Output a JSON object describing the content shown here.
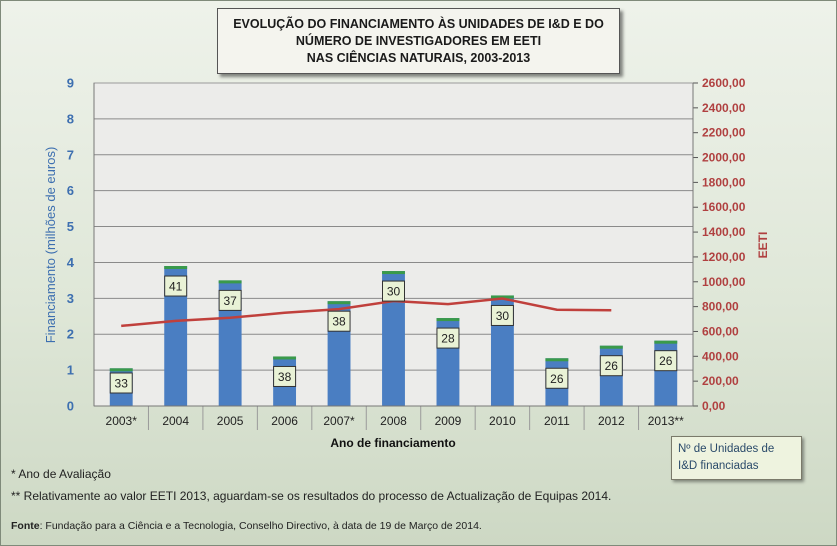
{
  "title_lines": [
    "EVOLUÇÃO DO FINANCIAMENTO ÀS UNIDADES DE I&D E DO",
    "NÚMERO DE INVESTIGADORES EM EETI",
    "NAS CIÊNCIAS NATURAIS, 2003-2013"
  ],
  "legend_text": {
    "line1": "Nº de Unidades de",
    "line2": "I&D  financiadas"
  },
  "notes": {
    "note1": "* Ano de Avaliação",
    "note2": "** Relativamente ao valor EETI 2013, aguardam-se os resultados do processo de Actualização de Equipas 2014."
  },
  "source": {
    "label": "Fonte",
    "text": ": Fundação para a Ciência e a Tecnologia, Conselho Directivo, à data de 19 de Março de 2014."
  },
  "colors": {
    "bar": "#4a7ec2",
    "bar_top": "#3a9a4a",
    "line": "#c0403c",
    "label_box": "#e9f2d6"
  },
  "chart_data": {
    "type": "bar",
    "xlabel": "Ano de financiamento",
    "ylabel": "Financiamento (milhões de euros)",
    "y2label": "EETI",
    "categories": [
      "2003*",
      "2004",
      "2005",
      "2006",
      "2007*",
      "2008",
      "2009",
      "2010",
      "2011",
      "2012",
      "2013**"
    ],
    "ylim": [
      0,
      9
    ],
    "y_ticks": [
      "0",
      "1",
      "2",
      "3",
      "4",
      "5",
      "6",
      "7",
      "8",
      "9"
    ],
    "y2lim": [
      0,
      2600
    ],
    "y2_ticks": [
      "0,00",
      "200,00",
      "400,00",
      "600,00",
      "800,00",
      "1000,00",
      "1200,00",
      "1400,00",
      "1600,00",
      "1800,00",
      "2000,00",
      "2200,00",
      "2400,00",
      "2600,00"
    ],
    "series": [
      {
        "name": "Financiamento",
        "type": "bar",
        "values": [
          1.05,
          3.9,
          3.5,
          1.38,
          2.92,
          3.76,
          2.45,
          3.08,
          1.33,
          1.68,
          1.82
        ]
      },
      {
        "name": "EETI",
        "type": "line",
        "axis": "right",
        "values": [
          645,
          685,
          710,
          750,
          780,
          845,
          820,
          865,
          775,
          770,
          null
        ]
      },
      {
        "name": "Nº de Unidades de I&D  financiadas",
        "type": "label",
        "values": [
          "33",
          "41",
          "37",
          "38",
          "38",
          "30",
          "28",
          "30",
          "26",
          "26",
          "26"
        ]
      }
    ],
    "grid": true,
    "legend": "bottom-right"
  }
}
